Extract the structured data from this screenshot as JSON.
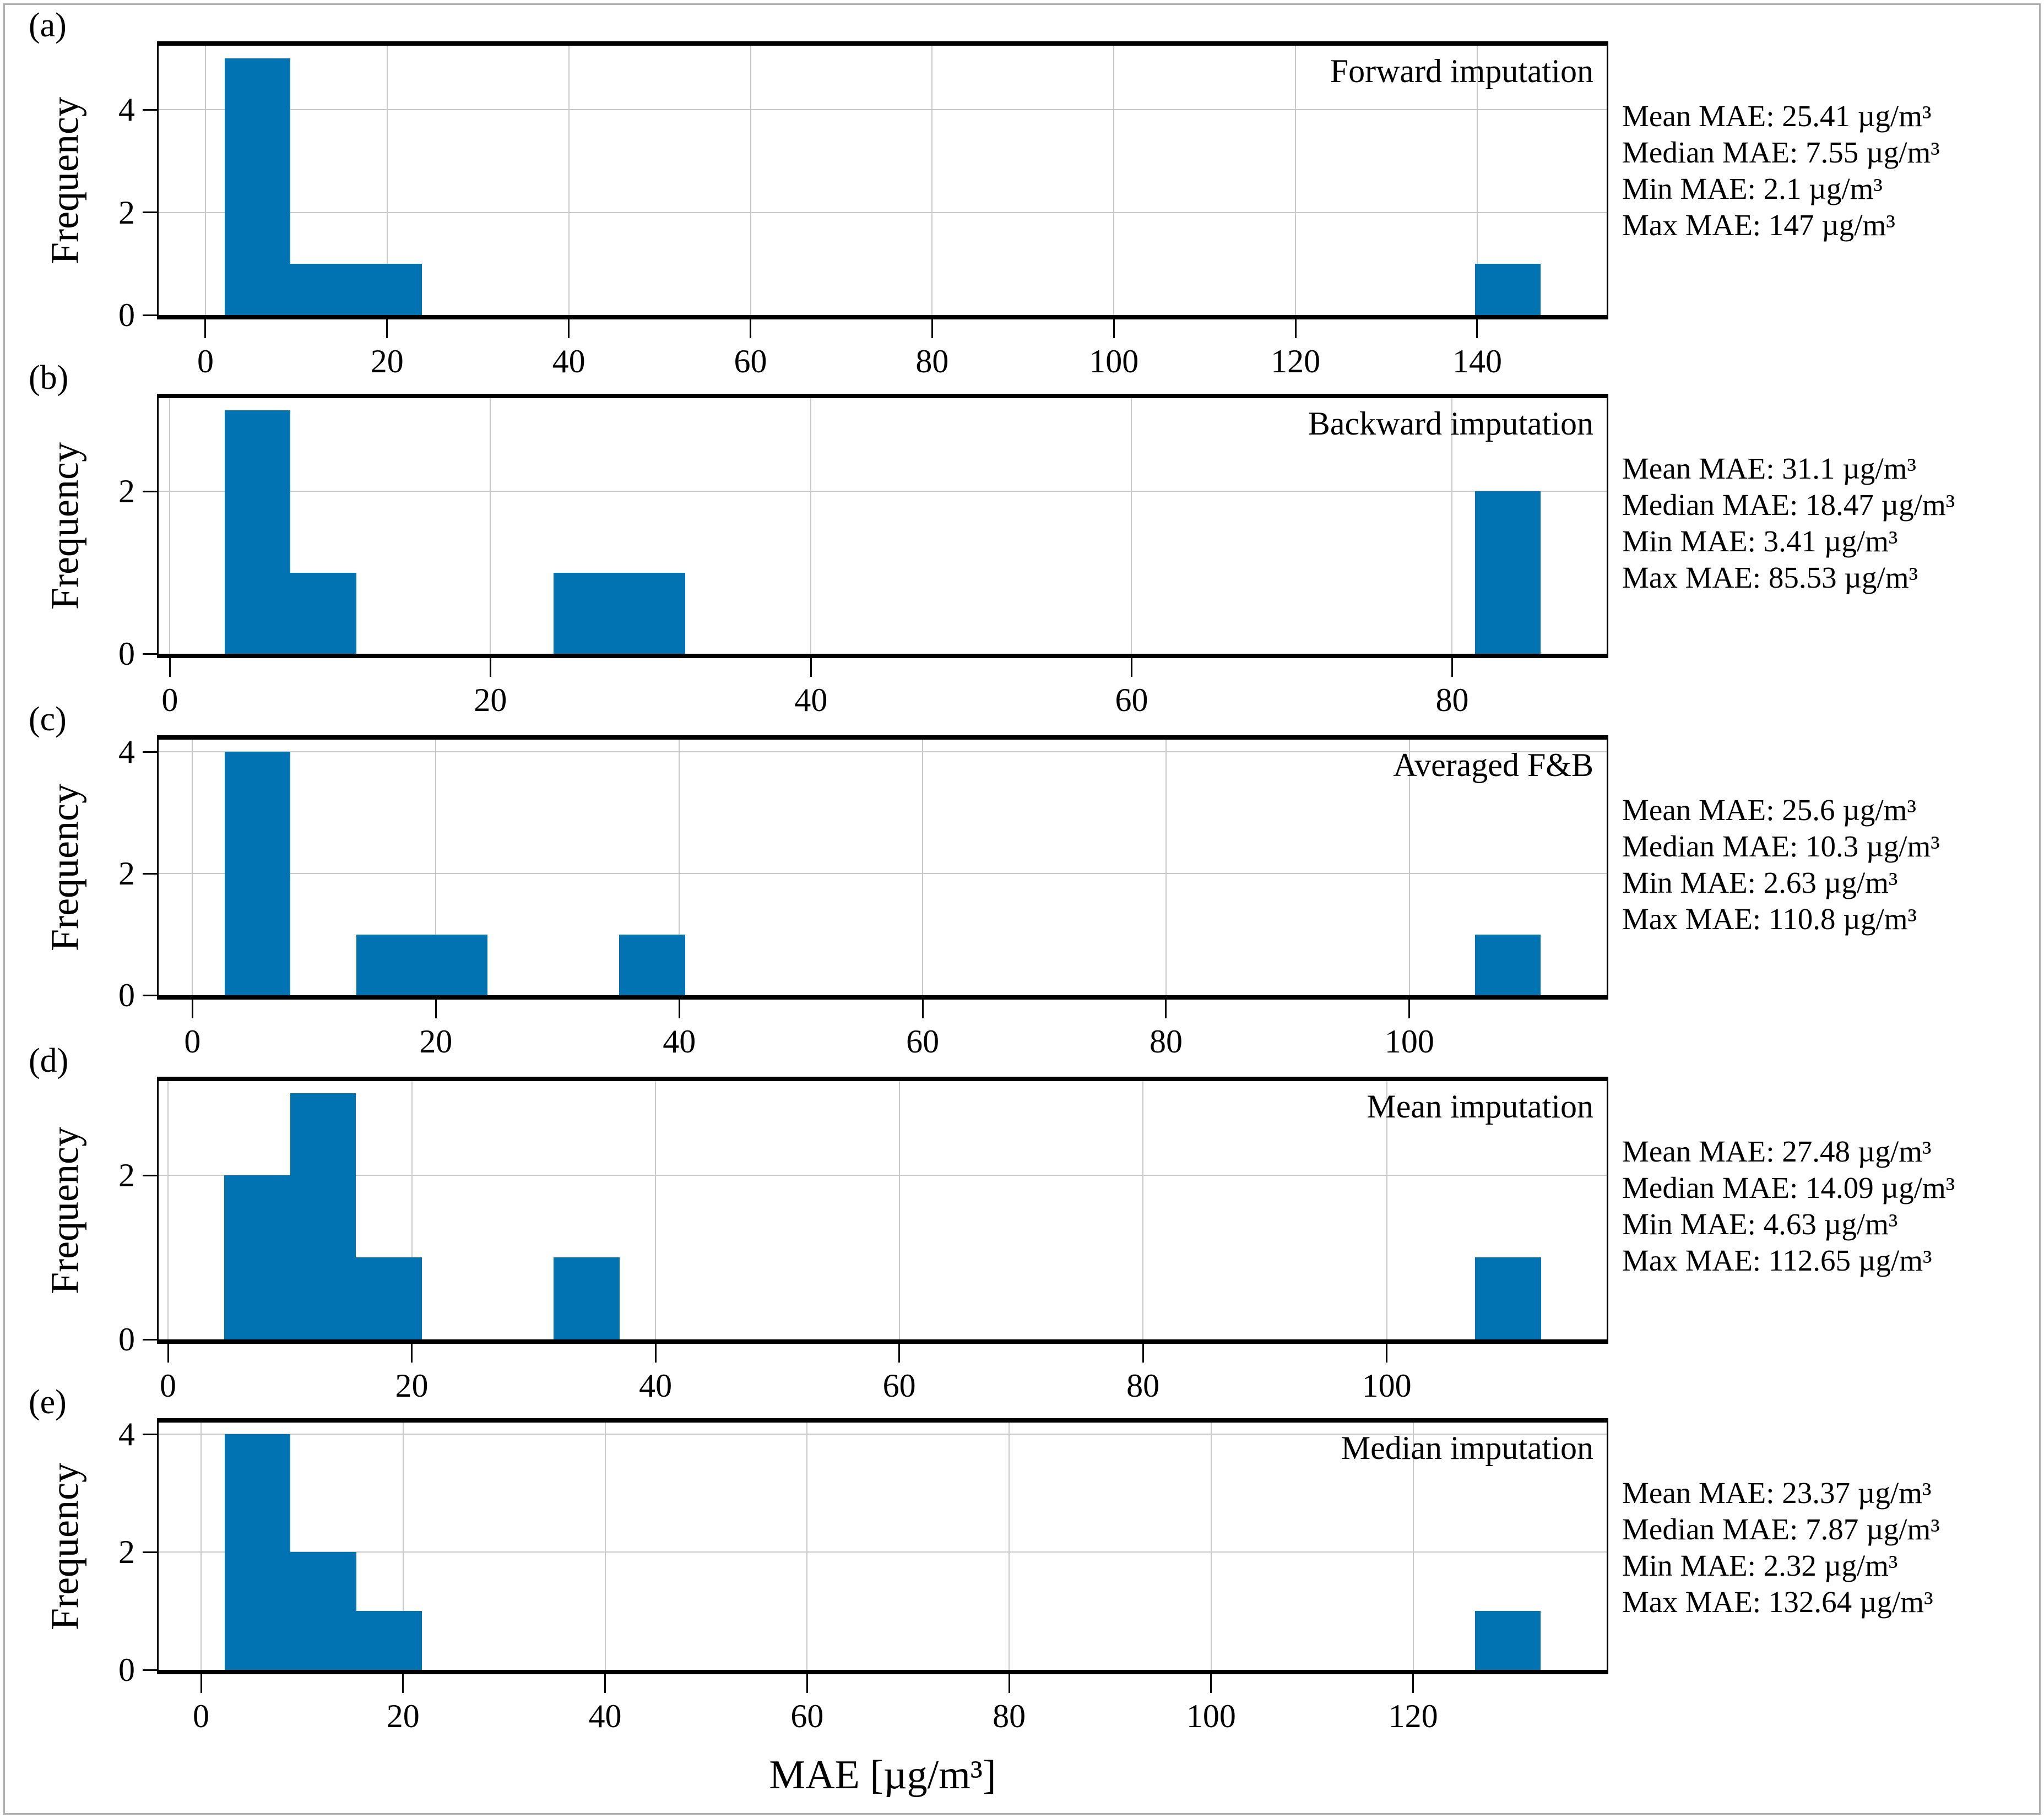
{
  "figure": {
    "xlabel": "MAE [µg/m³]",
    "bar_color": "#0173b2",
    "grid_color": "#c9c9c9"
  },
  "chart_data": [
    {
      "type": "bar",
      "panel_label": "(a)",
      "title": "Forward imputation",
      "ylabel": "Frequency",
      "stats": [
        "Mean MAE: 25.41 µg/m³",
        "Median MAE: 7.55 µg/m³",
        "Min MAE: 2.1 µg/m³",
        "Max MAE: 147 µg/m³"
      ],
      "xlim": [
        -5.15,
        154.25
      ],
      "ylim": [
        0,
        5.25
      ],
      "xticks": [
        0,
        20,
        40,
        60,
        80,
        100,
        120,
        140
      ],
      "yticks": [
        0,
        2,
        4
      ],
      "bins": [
        {
          "x0": 2.1,
          "x1": 9.35,
          "count": 5
        },
        {
          "x0": 9.35,
          "x1": 16.59,
          "count": 1
        },
        {
          "x0": 16.59,
          "x1": 23.84,
          "count": 1
        },
        {
          "x0": 139.76,
          "x1": 147.0,
          "count": 1
        }
      ]
    },
    {
      "type": "bar",
      "panel_label": "(b)",
      "title": "Backward imputation",
      "ylabel": "Frequency",
      "stats": [
        "Mean MAE: 31.1 µg/m³",
        "Median MAE: 18.47 µg/m³",
        "Min MAE: 3.41 µg/m³",
        "Max MAE: 85.53 µg/m³"
      ],
      "xlim": [
        -0.7,
        89.64
      ],
      "ylim": [
        0,
        3.15
      ],
      "xticks": [
        0,
        20,
        40,
        60,
        80
      ],
      "yticks": [
        0,
        2
      ],
      "bins": [
        {
          "x0": 3.41,
          "x1": 7.52,
          "count": 3
        },
        {
          "x0": 7.52,
          "x1": 11.62,
          "count": 1
        },
        {
          "x0": 23.93,
          "x1": 28.04,
          "count": 1
        },
        {
          "x0": 28.04,
          "x1": 32.15,
          "count": 1
        },
        {
          "x0": 81.42,
          "x1": 85.53,
          "count": 2
        }
      ]
    },
    {
      "type": "bar",
      "panel_label": "(c)",
      "title": "Averaged F&B",
      "ylabel": "Frequency",
      "stats": [
        "Mean MAE: 25.6 µg/m³",
        "Median MAE: 10.3 µg/m³",
        "Min MAE: 2.63 µg/m³",
        "Max MAE: 110.8 µg/m³"
      ],
      "xlim": [
        -2.78,
        116.21
      ],
      "ylim": [
        0,
        4.2
      ],
      "xticks": [
        0,
        20,
        40,
        60,
        80,
        100
      ],
      "yticks": [
        0,
        2,
        4
      ],
      "bins": [
        {
          "x0": 2.63,
          "x1": 8.04,
          "count": 4
        },
        {
          "x0": 13.45,
          "x1": 18.86,
          "count": 1
        },
        {
          "x0": 18.86,
          "x1": 24.26,
          "count": 1
        },
        {
          "x0": 35.08,
          "x1": 40.49,
          "count": 1
        },
        {
          "x0": 105.39,
          "x1": 110.8,
          "count": 1
        }
      ]
    },
    {
      "type": "bar",
      "panel_label": "(d)",
      "title": "Mean imputation",
      "ylabel": "Frequency",
      "stats": [
        "Mean MAE: 27.48 µg/m³",
        "Median MAE: 14.09 µg/m³",
        "Min MAE: 4.63 µg/m³",
        "Max MAE: 112.65 µg/m³"
      ],
      "xlim": [
        -0.77,
        118.05
      ],
      "ylim": [
        0,
        3.15
      ],
      "xticks": [
        0,
        20,
        40,
        60,
        80,
        100
      ],
      "yticks": [
        0,
        2
      ],
      "bins": [
        {
          "x0": 4.63,
          "x1": 10.03,
          "count": 2
        },
        {
          "x0": 10.03,
          "x1": 15.43,
          "count": 3
        },
        {
          "x0": 15.43,
          "x1": 20.83,
          "count": 1
        },
        {
          "x0": 31.63,
          "x1": 37.04,
          "count": 1
        },
        {
          "x0": 107.25,
          "x1": 112.65,
          "count": 1
        }
      ]
    },
    {
      "type": "bar",
      "panel_label": "(e)",
      "title": "Median imputation",
      "ylabel": "Frequency",
      "stats": [
        "Mean MAE: 23.37 µg/m³",
        "Median MAE: 7.87 µg/m³",
        "Min MAE: 2.32 µg/m³",
        "Max MAE: 132.64 µg/m³"
      ],
      "xlim": [
        -4.2,
        139.16
      ],
      "ylim": [
        0,
        4.2
      ],
      "xticks": [
        0,
        20,
        40,
        60,
        80,
        100,
        120
      ],
      "yticks": [
        0,
        2,
        4
      ],
      "bins": [
        {
          "x0": 2.32,
          "x1": 8.84,
          "count": 4
        },
        {
          "x0": 8.84,
          "x1": 15.35,
          "count": 2
        },
        {
          "x0": 15.35,
          "x1": 21.87,
          "count": 1
        },
        {
          "x0": 126.12,
          "x1": 132.64,
          "count": 1
        }
      ]
    }
  ]
}
